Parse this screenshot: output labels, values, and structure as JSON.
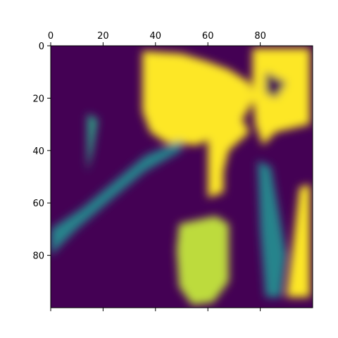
{
  "chart_data": {
    "type": "heatmap",
    "title": "",
    "xlabel": "",
    "ylabel": "",
    "x_ticks": [
      0,
      20,
      40,
      60,
      80
    ],
    "y_ticks": [
      0,
      20,
      40,
      60,
      80
    ],
    "xlim": [
      0,
      100
    ],
    "ylim": [
      100,
      0
    ],
    "x_axis_position": "top",
    "colormap": "viridis",
    "grid": false,
    "value_range": [
      0,
      1
    ],
    "image_description_regions": [
      {
        "shape": "polygon",
        "value": 1.0,
        "points": [
          [
            35,
            2
          ],
          [
            50,
            3
          ],
          [
            60,
            6
          ],
          [
            68,
            9
          ],
          [
            76,
            14
          ],
          [
            78,
            20
          ],
          [
            74,
            27
          ],
          [
            64,
            34
          ],
          [
            56,
            38
          ],
          [
            44,
            37
          ],
          [
            38,
            33
          ],
          [
            35,
            25
          ],
          [
            35,
            10
          ]
        ]
      },
      {
        "shape": "polygon",
        "value": 1.0,
        "points": [
          [
            60,
            30
          ],
          [
            72,
            26
          ],
          [
            76,
            33
          ],
          [
            68,
            40
          ],
          [
            66,
            48
          ],
          [
            66,
            56
          ],
          [
            60,
            58
          ],
          [
            60,
            40
          ]
        ]
      },
      {
        "shape": "polygon",
        "value": 1.0,
        "points": [
          [
            77,
            1
          ],
          [
            99,
            1
          ],
          [
            99,
            30
          ],
          [
            86,
            33
          ],
          [
            81,
            38
          ],
          [
            78,
            30
          ],
          [
            77,
            15
          ]
        ]
      },
      {
        "shape": "polygon",
        "value": 0.0,
        "points": [
          [
            82,
            10
          ],
          [
            90,
            14
          ],
          [
            86,
            20
          ],
          [
            82,
            18
          ]
        ]
      },
      {
        "shape": "polygon",
        "value": 1.0,
        "points": [
          [
            95,
            54
          ],
          [
            99,
            53
          ],
          [
            99,
            96
          ],
          [
            90,
            96
          ],
          [
            92,
            80
          ]
        ]
      },
      {
        "shape": "polygon",
        "value": 0.9,
        "points": [
          [
            49,
            68
          ],
          [
            63,
            65
          ],
          [
            68,
            68
          ],
          [
            68,
            90
          ],
          [
            62,
            98
          ],
          [
            54,
            99
          ],
          [
            49,
            92
          ],
          [
            48,
            78
          ]
        ]
      },
      {
        "shape": "polygon",
        "value": 0.55,
        "points": [
          [
            14,
            26
          ],
          [
            18,
            28
          ],
          [
            16,
            40
          ],
          [
            14,
            48
          ]
        ]
      },
      {
        "shape": "polygon",
        "value": 0.45,
        "points": [
          [
            0,
            70
          ],
          [
            12,
            62
          ],
          [
            24,
            52
          ],
          [
            36,
            42
          ],
          [
            50,
            36
          ],
          [
            50,
            40
          ],
          [
            36,
            48
          ],
          [
            24,
            58
          ],
          [
            10,
            70
          ],
          [
            0,
            80
          ]
        ]
      },
      {
        "shape": "polygon",
        "value": 0.45,
        "points": [
          [
            79,
            44
          ],
          [
            84,
            46
          ],
          [
            90,
            80
          ],
          [
            88,
            96
          ],
          [
            82,
            96
          ],
          [
            80,
            70
          ]
        ]
      }
    ]
  }
}
